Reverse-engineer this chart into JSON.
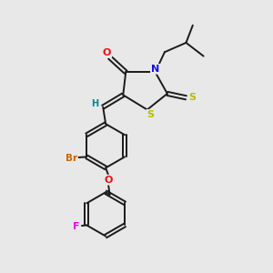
{
  "bg_color": "#e8e8e8",
  "bond_color": "#1a1a1a",
  "atom_colors": {
    "O": "#ee1111",
    "N": "#1111ee",
    "S": "#bbbb00",
    "Br": "#cc6600",
    "F": "#ee00ee",
    "H": "#008888"
  },
  "fig_size": [
    3.0,
    3.0
  ],
  "dpi": 100
}
